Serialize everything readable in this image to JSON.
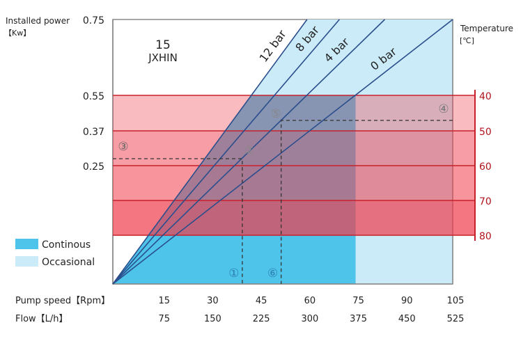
{
  "chart_data": {
    "type": "line",
    "title": "15",
    "subtitle": "JXHIN",
    "ylabel": "Installed power",
    "ylabel_unit": "【Kw】",
    "y_ticks": [
      "0.75",
      "0.55",
      "0.37",
      "0.25"
    ],
    "y2label": "Temperature",
    "y2label_unit": "[℃]",
    "y2_ticks": [
      "40",
      "50",
      "60",
      "70",
      "80"
    ],
    "x_rows": [
      {
        "label": "Pump speed【Rpm】",
        "ticks": [
          15,
          30,
          45,
          60,
          75,
          90,
          105
        ]
      },
      {
        "label": "Flow【L/h】",
        "ticks": [
          75,
          150,
          225,
          300,
          375,
          450,
          525
        ]
      }
    ],
    "xlim_rpm": [
      0,
      105
    ],
    "series": [
      {
        "name": "12 bar",
        "from": [
          0,
          0
        ],
        "to_rpm_at_0_75kw": 60
      },
      {
        "name": "8 bar",
        "from": [
          0,
          0
        ],
        "to_rpm_at_0_75kw": 70
      },
      {
        "name": "4 bar",
        "from": [
          0,
          0
        ],
        "to_rpm_at_0_75kw": 84
      },
      {
        "name": "0 bar",
        "from": [
          0,
          0
        ],
        "to_rpm_at_0_75kw": 105
      }
    ],
    "regions": {
      "continuous_max_rpm": 75,
      "occasional_max_rpm": 105
    },
    "legend": [
      {
        "label": "Continous",
        "color": "#4fc4ea"
      },
      {
        "label": "Occasional",
        "color": "#cbebf8"
      }
    ],
    "legend_placement": "bottom-left",
    "temperature_band_colors": [
      "#f9cdd1",
      "#f6b0b6",
      "#f5a0a7",
      "#f5717a"
    ],
    "annotations": [
      "①",
      "②",
      "③",
      "④",
      "⑤",
      "⑥"
    ],
    "example_points": {
      "marker_1_rpm": 40,
      "marker_6_rpm": 52
    }
  }
}
